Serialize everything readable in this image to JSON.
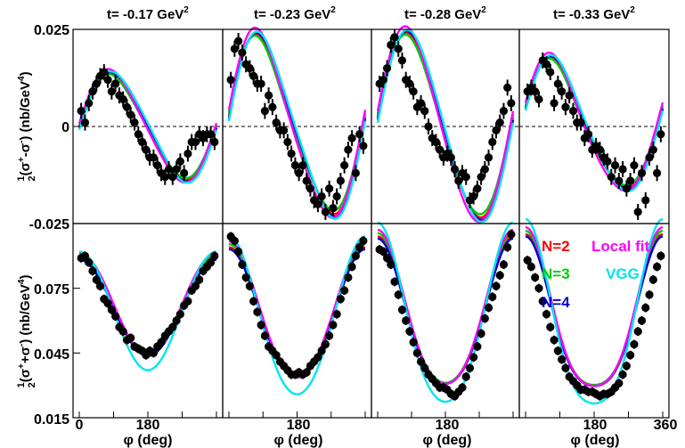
{
  "chart_data": {
    "type": "scatter",
    "layout": "2 rows x 4 columns, shared axes",
    "t_titles": [
      "t= -0.17 GeV",
      "t= -0.23 GeV",
      "t= -0.28 GeV",
      "t= -0.33 GeV"
    ],
    "t_unit_power": "2",
    "xlabel": "φ (deg)",
    "xlim": [
      0,
      360
    ],
    "x_ticks": [
      "0",
      "180",
      "360"
    ],
    "top_ylabel": "(nb/GeV",
    "bottom_ylabel": "(nb/GeV",
    "top_ylim": [
      -0.025,
      0.025
    ],
    "top_yticks": [
      "0.025",
      "0",
      "-0.025"
    ],
    "bottom_ylim": [
      0.015,
      0.105
    ],
    "bottom_yticks": [
      "0.075",
      "0.045",
      "0.015"
    ],
    "legend": [
      {
        "name": "N=2",
        "color": "#ff0000"
      },
      {
        "name": "N=3",
        "color": "#00cc00"
      },
      {
        "name": "N=4",
        "color": "#0000cc"
      },
      {
        "name": "Local fit",
        "color": "#ff00ff"
      },
      {
        "name": "VGG",
        "color": "#00e5ee"
      }
    ],
    "legend_placement": "inside last bottom panel, top",
    "top_panels": [
      {
        "A": 0.0135,
        "phase": 0,
        "B": 0.0015,
        "points": [
          [
            5,
            0.004
          ],
          [
            15,
            0.001
          ],
          [
            25,
            0.006
          ],
          [
            35,
            0.009
          ],
          [
            45,
            0.011
          ],
          [
            55,
            0.013
          ],
          [
            65,
            0.014
          ],
          [
            75,
            0.012
          ],
          [
            85,
            0.009
          ],
          [
            95,
            0.011
          ],
          [
            105,
            0.008
          ],
          [
            115,
            0.007
          ],
          [
            125,
            0.005
          ],
          [
            135,
            0.003
          ],
          [
            145,
            0.001
          ],
          [
            155,
            -0.002
          ],
          [
            165,
            -0.004
          ],
          [
            175,
            -0.006
          ],
          [
            185,
            -0.008
          ],
          [
            195,
            -0.008
          ],
          [
            205,
            -0.01
          ],
          [
            215,
            -0.012
          ],
          [
            225,
            -0.013
          ],
          [
            235,
            -0.011
          ],
          [
            245,
            -0.013
          ],
          [
            255,
            -0.011
          ],
          [
            265,
            -0.009
          ],
          [
            275,
            -0.012
          ],
          [
            285,
            -0.007
          ],
          [
            295,
            -0.004
          ],
          [
            305,
            -0.004
          ],
          [
            315,
            -0.002
          ],
          [
            325,
            -0.003
          ],
          [
            335,
            -0.002
          ],
          [
            345,
            -0.002
          ],
          [
            355,
            -0.004
          ]
        ]
      },
      {
        "A": 0.0225,
        "phase": 0.12,
        "B": 0.003,
        "points": [
          [
            5,
            0.012
          ],
          [
            15,
            0.02
          ],
          [
            25,
            0.022
          ],
          [
            35,
            0.019
          ],
          [
            45,
            0.016
          ],
          [
            55,
            0.015
          ],
          [
            65,
            0.013
          ],
          [
            75,
            0.011
          ],
          [
            85,
            0.011
          ],
          [
            95,
            0.004
          ],
          [
            105,
            0.008
          ],
          [
            115,
            0.005
          ],
          [
            125,
            0.001
          ],
          [
            135,
            -0.001
          ],
          [
            145,
            -0.001
          ],
          [
            155,
            -0.004
          ],
          [
            165,
            -0.007
          ],
          [
            175,
            -0.01
          ],
          [
            185,
            -0.012
          ],
          [
            195,
            -0.01
          ],
          [
            205,
            -0.014
          ],
          [
            215,
            -0.016
          ],
          [
            225,
            -0.019
          ],
          [
            235,
            -0.02
          ],
          [
            245,
            -0.018
          ],
          [
            255,
            -0.022
          ],
          [
            265,
            -0.016
          ],
          [
            275,
            -0.021
          ],
          [
            285,
            -0.018
          ],
          [
            295,
            -0.014
          ],
          [
            305,
            -0.01
          ],
          [
            315,
            -0.006
          ],
          [
            325,
            -0.003
          ],
          [
            335,
            -0.012
          ],
          [
            345,
            -0.002
          ],
          [
            355,
            -0.005
          ]
        ]
      },
      {
        "A": 0.0235,
        "phase": 0.1,
        "B": 0.002,
        "points": [
          [
            5,
            0.011
          ],
          [
            15,
            0.012
          ],
          [
            25,
            0.015
          ],
          [
            35,
            0.021
          ],
          [
            45,
            0.023
          ],
          [
            55,
            0.02
          ],
          [
            65,
            0.017
          ],
          [
            75,
            0.012
          ],
          [
            85,
            0.011
          ],
          [
            95,
            0.009
          ],
          [
            105,
            0.005
          ],
          [
            115,
            0.006
          ],
          [
            125,
            0.004
          ],
          [
            135,
            0.0
          ],
          [
            145,
            -0.003
          ],
          [
            155,
            -0.004
          ],
          [
            165,
            -0.006
          ],
          [
            175,
            -0.008
          ],
          [
            185,
            -0.007
          ],
          [
            195,
            -0.008
          ],
          [
            205,
            -0.011
          ],
          [
            215,
            -0.014
          ],
          [
            225,
            -0.012
          ],
          [
            235,
            -0.013
          ],
          [
            245,
            -0.019
          ],
          [
            255,
            -0.018
          ],
          [
            265,
            -0.016
          ],
          [
            275,
            -0.013
          ],
          [
            285,
            -0.011
          ],
          [
            295,
            -0.008
          ],
          [
            305,
            -0.004
          ],
          [
            315,
            -0.001
          ],
          [
            325,
            0.001
          ],
          [
            335,
            0.004
          ],
          [
            345,
            0.01
          ],
          [
            355,
            0.006
          ]
        ]
      },
      {
        "A": 0.0165,
        "phase": 0.3,
        "B": 0.002,
        "points": [
          [
            5,
            0.009
          ],
          [
            15,
            0.01
          ],
          [
            25,
            0.009
          ],
          [
            35,
            0.007
          ],
          [
            45,
            0.017
          ],
          [
            55,
            0.016
          ],
          [
            65,
            0.014
          ],
          [
            75,
            0.006
          ],
          [
            85,
            0.011
          ],
          [
            95,
            0.009
          ],
          [
            105,
            0.005
          ],
          [
            115,
            0.008
          ],
          [
            125,
            0.004
          ],
          [
            135,
            0.001
          ],
          [
            145,
            0.001
          ],
          [
            155,
            -0.003
          ],
          [
            165,
            -0.002
          ],
          [
            175,
            -0.006
          ],
          [
            185,
            -0.005
          ],
          [
            195,
            -0.006
          ],
          [
            205,
            -0.008
          ],
          [
            215,
            -0.009
          ],
          [
            225,
            -0.013
          ],
          [
            235,
            -0.01
          ],
          [
            245,
            -0.014
          ],
          [
            255,
            -0.011
          ],
          [
            265,
            -0.016
          ],
          [
            275,
            -0.014
          ],
          [
            285,
            -0.01
          ],
          [
            295,
            -0.022
          ],
          [
            305,
            -0.012
          ],
          [
            315,
            -0.019
          ],
          [
            325,
            -0.008
          ],
          [
            335,
            -0.006
          ],
          [
            345,
            -0.012
          ],
          [
            355,
            -0.002
          ]
        ]
      }
    ],
    "bottom_panels": [
      {
        "C": 0.0665,
        "D": 0.0225,
        "E": 0.0,
        "points": [
          [
            5,
            0.089
          ],
          [
            15,
            0.09
          ],
          [
            25,
            0.087
          ],
          [
            35,
            0.083
          ],
          [
            45,
            0.079
          ],
          [
            55,
            0.076
          ],
          [
            65,
            0.07
          ],
          [
            75,
            0.068
          ],
          [
            85,
            0.065
          ],
          [
            95,
            0.062
          ],
          [
            105,
            0.057
          ],
          [
            115,
            0.055
          ],
          [
            125,
            0.051
          ],
          [
            135,
            0.052
          ],
          [
            145,
            0.048
          ],
          [
            155,
            0.047
          ],
          [
            165,
            0.046
          ],
          [
            175,
            0.044
          ],
          [
            185,
            0.046
          ],
          [
            195,
            0.045
          ],
          [
            205,
            0.048
          ],
          [
            215,
            0.05
          ],
          [
            225,
            0.053
          ],
          [
            235,
            0.055
          ],
          [
            245,
            0.057
          ],
          [
            255,
            0.06
          ],
          [
            265,
            0.063
          ],
          [
            275,
            0.067
          ],
          [
            285,
            0.069
          ],
          [
            295,
            0.074
          ],
          [
            305,
            0.076
          ],
          [
            315,
            0.079
          ],
          [
            325,
            0.083
          ],
          [
            335,
            0.085
          ],
          [
            345,
            0.087
          ],
          [
            355,
            0.09
          ]
        ]
      },
      {
        "C": 0.062,
        "D": 0.03,
        "E": 0.002,
        "points": [
          [
            5,
            0.099
          ],
          [
            15,
            0.097
          ],
          [
            25,
            0.092
          ],
          [
            35,
            0.086
          ],
          [
            45,
            0.08
          ],
          [
            55,
            0.076
          ],
          [
            65,
            0.069
          ],
          [
            75,
            0.064
          ],
          [
            85,
            0.058
          ],
          [
            95,
            0.053
          ],
          [
            105,
            0.048
          ],
          [
            115,
            0.046
          ],
          [
            125,
            0.044
          ],
          [
            135,
            0.041
          ],
          [
            145,
            0.039
          ],
          [
            155,
            0.037
          ],
          [
            165,
            0.035
          ],
          [
            175,
            0.035
          ],
          [
            185,
            0.036
          ],
          [
            195,
            0.035
          ],
          [
            205,
            0.036
          ],
          [
            215,
            0.039
          ],
          [
            225,
            0.041
          ],
          [
            235,
            0.043
          ],
          [
            245,
            0.046
          ],
          [
            255,
            0.049
          ],
          [
            265,
            0.053
          ],
          [
            275,
            0.058
          ],
          [
            285,
            0.063
          ],
          [
            295,
            0.07
          ],
          [
            305,
            0.074
          ],
          [
            315,
            0.08
          ],
          [
            325,
            0.085
          ],
          [
            335,
            0.09
          ],
          [
            345,
            0.094
          ],
          [
            355,
            0.097
          ]
        ]
      },
      {
        "C": 0.061,
        "D": 0.034,
        "E": 0.004,
        "points": [
          [
            5,
            0.093
          ],
          [
            15,
            0.092
          ],
          [
            25,
            0.089
          ],
          [
            35,
            0.086
          ],
          [
            45,
            0.078
          ],
          [
            55,
            0.072
          ],
          [
            65,
            0.065
          ],
          [
            75,
            0.06
          ],
          [
            85,
            0.055
          ],
          [
            95,
            0.05
          ],
          [
            105,
            0.045
          ],
          [
            115,
            0.041
          ],
          [
            125,
            0.038
          ],
          [
            135,
            0.035
          ],
          [
            145,
            0.033
          ],
          [
            155,
            0.031
          ],
          [
            165,
            0.029
          ],
          [
            175,
            0.029
          ],
          [
            185,
            0.028
          ],
          [
            195,
            0.026
          ],
          [
            205,
            0.025
          ],
          [
            215,
            0.027
          ],
          [
            225,
            0.029
          ],
          [
            235,
            0.034
          ],
          [
            245,
            0.038
          ],
          [
            255,
            0.043
          ],
          [
            265,
            0.048
          ],
          [
            275,
            0.054
          ],
          [
            285,
            0.061
          ],
          [
            295,
            0.066
          ],
          [
            305,
            0.071
          ],
          [
            315,
            0.076
          ],
          [
            325,
            0.081
          ],
          [
            335,
            0.086
          ],
          [
            345,
            0.094
          ],
          [
            355,
            0.1
          ]
        ]
      },
      {
        "C": 0.059,
        "D": 0.035,
        "E": 0.006,
        "points": [
          [
            5,
            0.088
          ],
          [
            15,
            0.085
          ],
          [
            25,
            0.08
          ],
          [
            35,
            0.075
          ],
          [
            45,
            0.069
          ],
          [
            55,
            0.063
          ],
          [
            65,
            0.057
          ],
          [
            75,
            0.051
          ],
          [
            85,
            0.046
          ],
          [
            95,
            0.042
          ],
          [
            105,
            0.038
          ],
          [
            115,
            0.034
          ],
          [
            125,
            0.032
          ],
          [
            135,
            0.03
          ],
          [
            145,
            0.028
          ],
          [
            155,
            0.028
          ],
          [
            165,
            0.027
          ],
          [
            175,
            0.027
          ],
          [
            185,
            0.026
          ],
          [
            195,
            0.025
          ],
          [
            205,
            0.026
          ],
          [
            215,
            0.026
          ],
          [
            225,
            0.027
          ],
          [
            235,
            0.029
          ],
          [
            245,
            0.031
          ],
          [
            255,
            0.035
          ],
          [
            265,
            0.039
          ],
          [
            275,
            0.044
          ],
          [
            285,
            0.049
          ],
          [
            295,
            0.055
          ],
          [
            305,
            0.06
          ],
          [
            315,
            0.066
          ],
          [
            325,
            0.072
          ],
          [
            335,
            0.079
          ],
          [
            345,
            0.085
          ],
          [
            355,
            0.09
          ]
        ]
      }
    ]
  }
}
